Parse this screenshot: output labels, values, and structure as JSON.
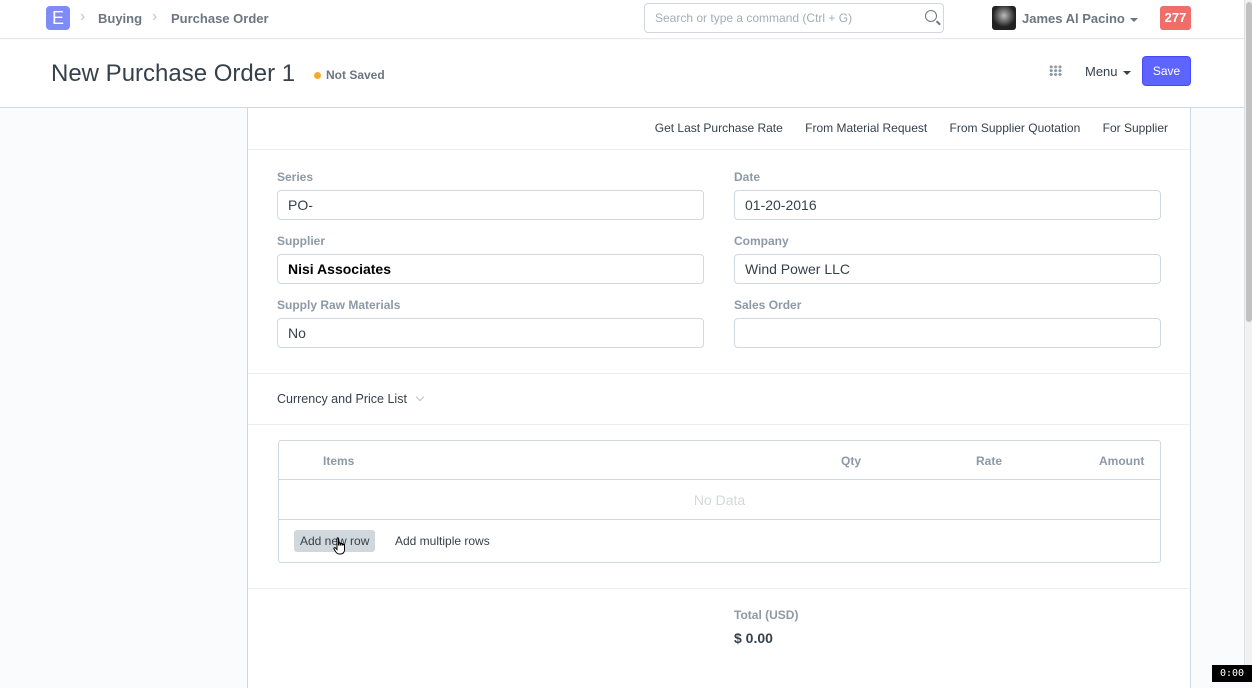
{
  "navbar": {
    "logo": "E",
    "breadcrumbs": [
      "Buying",
      "Purchase Order"
    ],
    "search_placeholder": "Search or type a command (Ctrl + G)",
    "user": "James Al Pacino",
    "notifications": "277"
  },
  "header": {
    "title": "New Purchase Order 1",
    "status": "Not Saved",
    "menu": "Menu",
    "save": "Save"
  },
  "actions": [
    "Get Last Purchase Rate",
    "From Material Request",
    "From Supplier Quotation",
    "For Supplier"
  ],
  "fields": {
    "series": {
      "label": "Series",
      "value": "PO-"
    },
    "date": {
      "label": "Date",
      "value": "01-20-2016"
    },
    "supplier": {
      "label": "Supplier",
      "value": "Nisi Associates"
    },
    "company": {
      "label": "Company",
      "value": "Wind Power LLC"
    },
    "supply_raw": {
      "label": "Supply Raw Materials",
      "value": "No"
    },
    "sales_order": {
      "label": "Sales Order",
      "value": ""
    }
  },
  "currency_section": "Currency and Price List",
  "items_table": {
    "columns": [
      "Items",
      "Qty",
      "Rate",
      "Amount"
    ],
    "empty": "No Data",
    "add_row": "Add new row",
    "add_multiple": "Add multiple rows"
  },
  "totals": {
    "label": "Total (USD)",
    "value": "$ 0.00"
  },
  "timer": "0:00"
}
